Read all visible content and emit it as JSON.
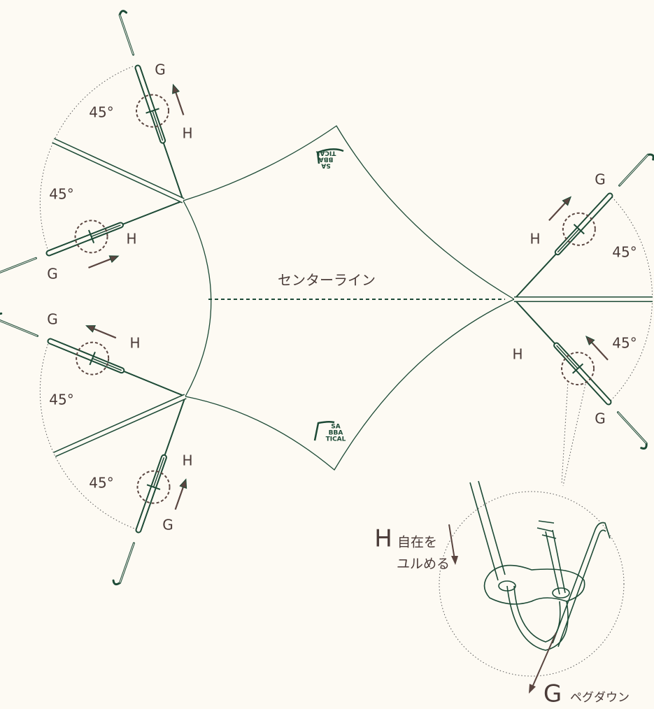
{
  "labels": [
    "G",
    "H",
    "45°",
    "45°",
    "H",
    "G",
    "G",
    "H",
    "45°",
    "H",
    "G",
    "45°",
    "G",
    "H",
    "45°",
    "45°",
    "H",
    "G"
  ],
  "center_line": "センターライン",
  "logos": [
    [
      "SA",
      "BBA",
      "TICAL"
    ],
    [
      "SA",
      "BBA",
      "TICAL"
    ]
  ],
  "detail": {
    "h": "H",
    "h_text_1": "自在を",
    "h_text_2": "ユルめる",
    "g": "G",
    "g_text": "ペグダウン"
  }
}
